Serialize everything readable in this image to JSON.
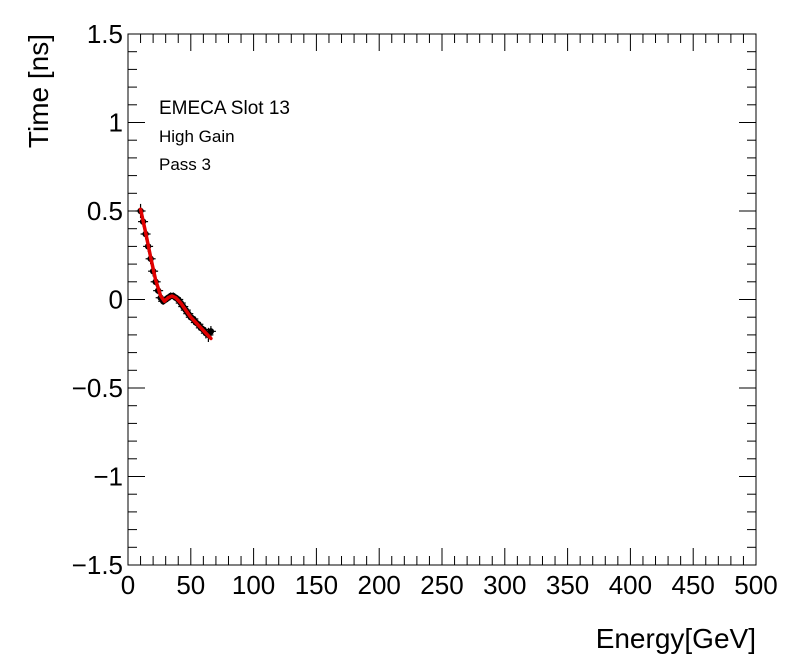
{
  "chart_data": {
    "type": "scatter",
    "title": "",
    "xlabel": "Energy[GeV]",
    "ylabel": "Time [ns]",
    "xlim": [
      0,
      500
    ],
    "ylim": [
      -1.5,
      1.5
    ],
    "x_ticks": [
      "0",
      "50",
      "100",
      "150",
      "200",
      "250",
      "300",
      "350",
      "400",
      "450",
      "500"
    ],
    "y_ticks": [
      "−1.5",
      "−1",
      "−0.5",
      "0",
      "0.5",
      "1",
      "1.5"
    ],
    "grid": false,
    "annotations": [
      "EMECA Slot 13",
      "High Gain",
      "Pass 3"
    ],
    "colors": {
      "points": "#000000",
      "fit": "#e00000"
    },
    "series": [
      {
        "kind": "points-with-error-bars",
        "x": [
          10,
          12,
          14,
          16,
          18,
          20,
          22,
          24,
          26,
          28,
          30,
          32,
          34,
          36,
          38,
          40,
          42,
          44,
          46,
          48,
          50,
          52,
          54,
          56,
          58,
          60,
          62,
          64,
          66
        ],
        "y": [
          0.5,
          0.44,
          0.37,
          0.3,
          0.23,
          0.16,
          0.1,
          0.05,
          0.01,
          -0.01,
          0.0,
          0.01,
          0.02,
          0.02,
          0.01,
          0.0,
          -0.02,
          -0.04,
          -0.06,
          -0.08,
          -0.1,
          -0.11,
          -0.13,
          -0.14,
          -0.16,
          -0.17,
          -0.19,
          -0.2,
          -0.18
        ],
        "err": [
          0.04,
          0.03,
          0.03,
          0.03,
          0.03,
          0.03,
          0.02,
          0.02,
          0.02,
          0.02,
          0.02,
          0.02,
          0.02,
          0.02,
          0.02,
          0.02,
          0.02,
          0.02,
          0.02,
          0.02,
          0.02,
          0.02,
          0.02,
          0.02,
          0.02,
          0.02,
          0.03,
          0.04,
          0.03
        ]
      },
      {
        "kind": "fit-curve",
        "x": [
          10,
          14,
          18,
          22,
          26,
          29,
          32,
          35,
          38,
          42,
          46,
          50,
          54,
          58,
          62,
          66
        ],
        "y": [
          0.51,
          0.38,
          0.24,
          0.11,
          0.02,
          -0.01,
          0.01,
          0.02,
          0.01,
          -0.02,
          -0.06,
          -0.1,
          -0.13,
          -0.16,
          -0.19,
          -0.22
        ]
      }
    ]
  }
}
